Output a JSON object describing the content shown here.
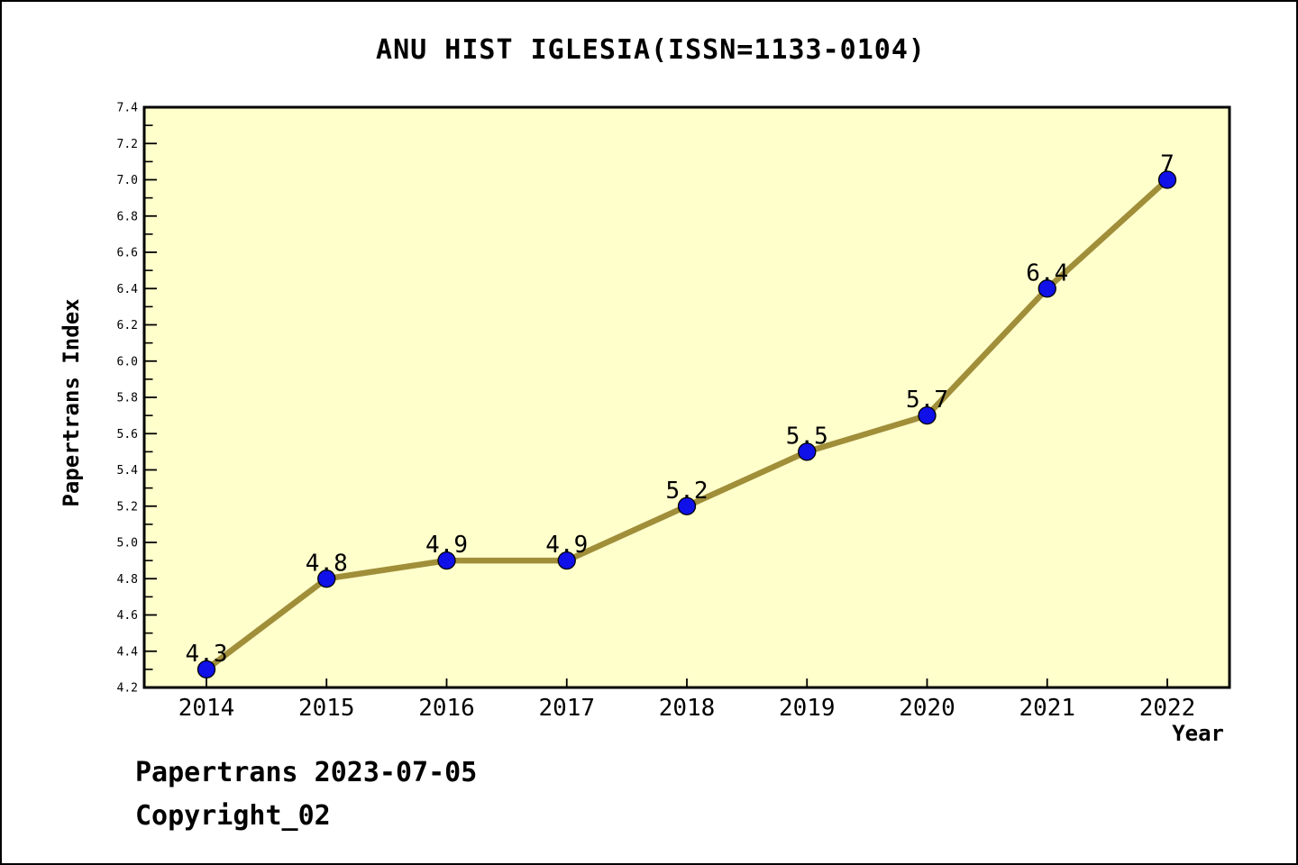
{
  "chart_data": {
    "type": "line",
    "title": "ANU HIST IGLESIA(ISSN=1133-0104)",
    "xlabel": "Year",
    "ylabel": "Papertrans Index",
    "categories": [
      "2014",
      "2015",
      "2016",
      "2017",
      "2018",
      "2019",
      "2020",
      "2021",
      "2022"
    ],
    "values": [
      4.3,
      4.8,
      4.9,
      4.9,
      5.2,
      5.5,
      5.7,
      6.4,
      7
    ],
    "point_labels": [
      "4.3",
      "4.8",
      "4.9",
      "4.9",
      "5.2",
      "5.5",
      "5.7",
      "6.4",
      "7"
    ],
    "ylim": [
      4.2,
      7.4
    ],
    "ytick_interval": 0.2,
    "yminor_interval": 0.1,
    "grid": false,
    "legend": "none",
    "colors": {
      "line": "#A08E39",
      "marker_fill": "#1010E8",
      "marker_edge": "#000000",
      "plot_background": "#FFFFCC",
      "axis": "#000000",
      "text": "#000000",
      "page_background": "#FFFFFF"
    }
  },
  "footer": {
    "line1": "Papertrans 2023-07-05",
    "line2": "Copyright_02"
  }
}
